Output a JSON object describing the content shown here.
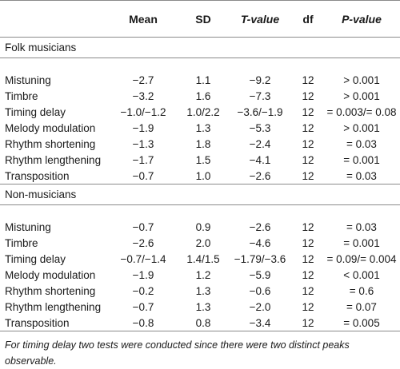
{
  "columns": {
    "mean": "Mean",
    "sd": "SD",
    "t": "T-value",
    "df": "df",
    "p": "P-value"
  },
  "groups": [
    {
      "name": "Folk musicians",
      "rows": [
        {
          "label": "Mistuning",
          "mean": "−2.7",
          "sd": "1.1",
          "t": "−9.2",
          "df": "12",
          "p": "> 0.001"
        },
        {
          "label": "Timbre",
          "mean": "−3.2",
          "sd": "1.6",
          "t": "−7.3",
          "df": "12",
          "p": "> 0.001"
        },
        {
          "label": "Timing delay",
          "mean": "−1.0/−1.2",
          "sd": "1.0/2.2",
          "t": "−3.6/−1.9",
          "df": "12",
          "p": "= 0.003/= 0.08"
        },
        {
          "label": "Melody modulation",
          "mean": "−1.9",
          "sd": "1.3",
          "t": "−5.3",
          "df": "12",
          "p": "> 0.001"
        },
        {
          "label": "Rhythm shortening",
          "mean": "−1.3",
          "sd": "1.8",
          "t": "−2.4",
          "df": "12",
          "p": "= 0.03"
        },
        {
          "label": "Rhythm lengthening",
          "mean": "−1.7",
          "sd": "1.5",
          "t": "−4.1",
          "df": "12",
          "p": "= 0.001"
        },
        {
          "label": "Transposition",
          "mean": "−0.7",
          "sd": "1.0",
          "t": "−2.6",
          "df": "12",
          "p": "= 0.03"
        }
      ]
    },
    {
      "name": "Non-musicians",
      "rows": [
        {
          "label": "Mistuning",
          "mean": "−0.7",
          "sd": "0.9",
          "t": "−2.6",
          "df": "12",
          "p": "= 0.03"
        },
        {
          "label": "Timbre",
          "mean": "−2.6",
          "sd": "2.0",
          "t": "−4.6",
          "df": "12",
          "p": "= 0.001"
        },
        {
          "label": "Timing delay",
          "mean": "−0.7/−1.4",
          "sd": "1.4/1.5",
          "t": "−1.79/−3.6",
          "df": "12",
          "p": "= 0.09/= 0.004"
        },
        {
          "label": "Melody modulation",
          "mean": "−1.9",
          "sd": "1.2",
          "t": "−5.9",
          "df": "12",
          "p": "< 0.001"
        },
        {
          "label": "Rhythm shortening",
          "mean": "−0.2",
          "sd": "1.3",
          "t": "−0.6",
          "df": "12",
          "p": "= 0.6"
        },
        {
          "label": "Rhythm lengthening",
          "mean": "−0.7",
          "sd": "1.3",
          "t": "−2.0",
          "df": "12",
          "p": "= 0.07"
        },
        {
          "label": "Transposition",
          "mean": "−0.8",
          "sd": "0.8",
          "t": "−3.4",
          "df": "12",
          "p": "= 0.005"
        }
      ]
    }
  ],
  "footnote": "For timing delay two tests were conducted since there were two distinct peaks observable."
}
